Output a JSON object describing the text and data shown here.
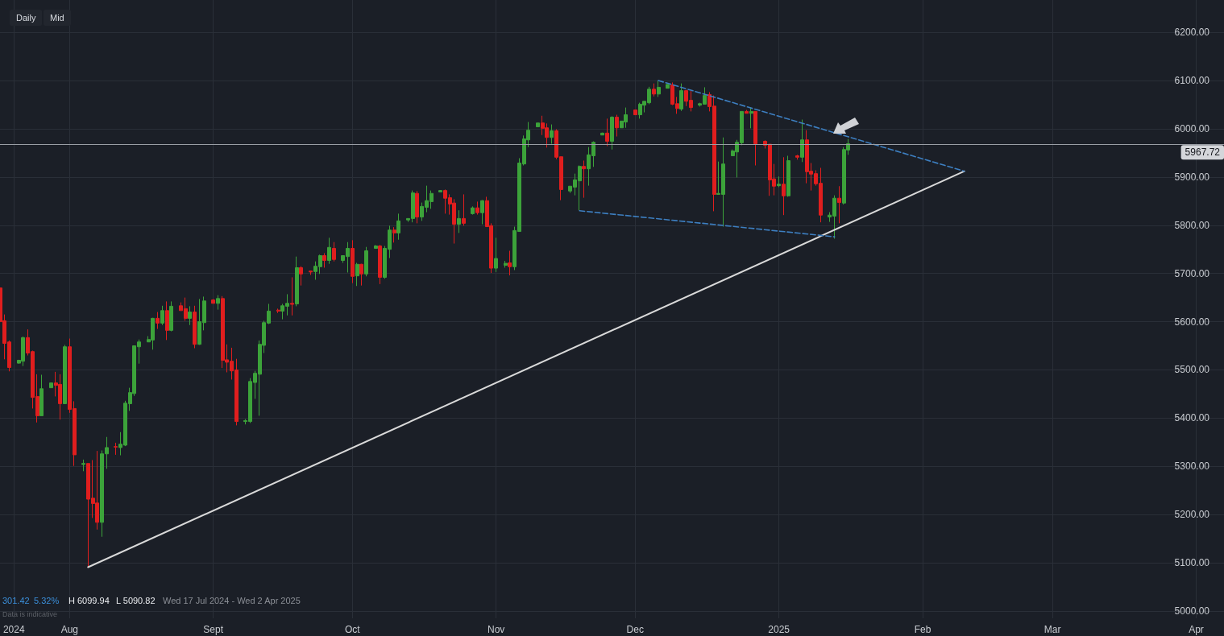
{
  "chart_data": {
    "type": "candlestick",
    "x": [
      "2024-07-17",
      "2024-07-18",
      "2024-07-19",
      "2024-07-21",
      "2024-07-22",
      "2024-07-23",
      "2024-07-24",
      "2024-07-25",
      "2024-07-26",
      "2024-07-28",
      "2024-07-29",
      "2024-07-30",
      "2024-07-31",
      "2024-08-01",
      "2024-08-02",
      "2024-08-04",
      "2024-08-05",
      "2024-08-06",
      "2024-08-07",
      "2024-08-08",
      "2024-08-09",
      "2024-08-11",
      "2024-08-12",
      "2024-08-13",
      "2024-08-14",
      "2024-08-15",
      "2024-08-16",
      "2024-08-18",
      "2024-08-19",
      "2024-08-20",
      "2024-08-21",
      "2024-08-22",
      "2024-08-23",
      "2024-08-25",
      "2024-08-26",
      "2024-08-27",
      "2024-08-28",
      "2024-08-29",
      "2024-08-30",
      "2024-09-01",
      "2024-09-02",
      "2024-09-03",
      "2024-09-04",
      "2024-09-05",
      "2024-09-06",
      "2024-09-08",
      "2024-09-09",
      "2024-09-10",
      "2024-09-11",
      "2024-09-12",
      "2024-09-13",
      "2024-09-15",
      "2024-09-16",
      "2024-09-17",
      "2024-09-18",
      "2024-09-19",
      "2024-09-20",
      "2024-09-22",
      "2024-09-23",
      "2024-09-24",
      "2024-09-25",
      "2024-09-26",
      "2024-09-27",
      "2024-09-29",
      "2024-09-30",
      "2024-10-01",
      "2024-10-02",
      "2024-10-03",
      "2024-10-04",
      "2024-10-06",
      "2024-10-07",
      "2024-10-08",
      "2024-10-09",
      "2024-10-10",
      "2024-10-11",
      "2024-10-13",
      "2024-10-14",
      "2024-10-15",
      "2024-10-16",
      "2024-10-17",
      "2024-10-18",
      "2024-10-20",
      "2024-10-21",
      "2024-10-22",
      "2024-10-23",
      "2024-10-24",
      "2024-10-25",
      "2024-10-27",
      "2024-10-28",
      "2024-10-29",
      "2024-10-30",
      "2024-10-31",
      "2024-11-01",
      "2024-11-03",
      "2024-11-04",
      "2024-11-05",
      "2024-11-06",
      "2024-11-07",
      "2024-11-08",
      "2024-11-10",
      "2024-11-11",
      "2024-11-12",
      "2024-11-13",
      "2024-11-14",
      "2024-11-15",
      "2024-11-17",
      "2024-11-18",
      "2024-11-19",
      "2024-11-20",
      "2024-11-21",
      "2024-11-22",
      "2024-11-24",
      "2024-11-25",
      "2024-11-26",
      "2024-11-27",
      "2024-11-28",
      "2024-11-29",
      "2024-12-01",
      "2024-12-02",
      "2024-12-03",
      "2024-12-04",
      "2024-12-05",
      "2024-12-06",
      "2024-12-08",
      "2024-12-09",
      "2024-12-10",
      "2024-12-11",
      "2024-12-12",
      "2024-12-13",
      "2024-12-15",
      "2024-12-16",
      "2024-12-17",
      "2024-12-18",
      "2024-12-19",
      "2024-12-20",
      "2024-12-22",
      "2024-12-23",
      "2024-12-24",
      "2024-12-25",
      "2024-12-26",
      "2024-12-27",
      "2024-12-29",
      "2024-12-30",
      "2024-12-31",
      "2025-01-01",
      "2025-01-02",
      "2025-01-03",
      "2025-01-05",
      "2025-01-06",
      "2025-01-07",
      "2025-01-08",
      "2025-01-09",
      "2025-01-10",
      "2025-01-12",
      "2025-01-13",
      "2025-01-14",
      "2025-01-15",
      "2025-01-16"
    ],
    "ohlc": [
      [
        5670,
        5675,
        5595,
        5600
      ],
      [
        5602,
        5615,
        5522,
        5555
      ],
      [
        5558,
        5561,
        5497,
        5505
      ],
      [
        5514,
        5521,
        5513,
        5520
      ],
      [
        5518,
        5569,
        5508,
        5567
      ],
      [
        5567,
        5584,
        5530,
        5535
      ],
      [
        5538,
        5540,
        5420,
        5443
      ],
      [
        5445,
        5491,
        5391,
        5405
      ],
      [
        5405,
        5490,
        5405,
        5461
      ],
      [
        5463,
        5473,
        5463,
        5473
      ],
      [
        5473,
        5496,
        5445,
        5468
      ],
      [
        5470,
        5491,
        5397,
        5430
      ],
      [
        5430,
        5552,
        5430,
        5548
      ],
      [
        5548,
        5565,
        5411,
        5418
      ],
      [
        5420,
        5435,
        5301,
        5324
      ],
      [
        5304,
        5314,
        5290,
        5306
      ],
      [
        5306,
        5306,
        5091,
        5232
      ],
      [
        5234,
        5313,
        5193,
        5223
      ],
      [
        5224,
        5332,
        5169,
        5184
      ],
      [
        5184,
        5333,
        5154,
        5326
      ],
      [
        5326,
        5361,
        5295,
        5339
      ],
      [
        5341,
        5349,
        5324,
        5340
      ],
      [
        5339,
        5371,
        5323,
        5346
      ],
      [
        5344,
        5436,
        5342,
        5431
      ],
      [
        5430,
        5463,
        5415,
        5453
      ],
      [
        5451,
        5550,
        5446,
        5550
      ],
      [
        5548,
        5563,
        5513,
        5558
      ],
      [
        5558,
        5570,
        5558,
        5563
      ],
      [
        5562,
        5608,
        5542,
        5607
      ],
      [
        5607,
        5620,
        5585,
        5597
      ],
      [
        5597,
        5633,
        5593,
        5623
      ],
      [
        5623,
        5642,
        5562,
        5582
      ],
      [
        5582,
        5642,
        5580,
        5632
      ],
      [
        5633,
        5640,
        5623,
        5623
      ],
      [
        5627,
        5650,
        5602,
        5607
      ],
      [
        5607,
        5632,
        5593,
        5620
      ],
      [
        5620,
        5633,
        5545,
        5553
      ],
      [
        5553,
        5647,
        5552,
        5600
      ],
      [
        5598,
        5652,
        5582,
        5643
      ],
      [
        5645,
        5647,
        5638,
        5638
      ],
      [
        5638,
        5655,
        5625,
        5648
      ],
      [
        5648,
        5653,
        5504,
        5520
      ],
      [
        5521,
        5553,
        5495,
        5516
      ],
      [
        5518,
        5546,
        5480,
        5498
      ],
      [
        5500,
        5523,
        5385,
        5393
      ],
      [
        5393,
        5398,
        5387,
        5395
      ],
      [
        5393,
        5483,
        5390,
        5476
      ],
      [
        5474,
        5498,
        5440,
        5493
      ],
      [
        5491,
        5561,
        5405,
        5553
      ],
      [
        5551,
        5602,
        5535,
        5598
      ],
      [
        5597,
        5637,
        5595,
        5622
      ],
      [
        5624,
        5627,
        5618,
        5622
      ],
      [
        5622,
        5637,
        5605,
        5633
      ],
      [
        5632,
        5657,
        5613,
        5638
      ],
      [
        5638,
        5692,
        5613,
        5636
      ],
      [
        5637,
        5735,
        5632,
        5712
      ],
      [
        5712,
        5715,
        5675,
        5699
      ],
      [
        5705,
        5706,
        5697,
        5703
      ],
      [
        5704,
        5725,
        5687,
        5715
      ],
      [
        5714,
        5739,
        5699,
        5737
      ],
      [
        5737,
        5742,
        5712,
        5727
      ],
      [
        5727,
        5774,
        5720,
        5754
      ],
      [
        5752,
        5765,
        5725,
        5729
      ],
      [
        5727,
        5737,
        5722,
        5737
      ],
      [
        5735,
        5765,
        5702,
        5752
      ],
      [
        5752,
        5769,
        5680,
        5694
      ],
      [
        5695,
        5722,
        5674,
        5719
      ],
      [
        5719,
        5720,
        5675,
        5699
      ],
      [
        5699,
        5755,
        5694,
        5747
      ],
      [
        5752,
        5759,
        5752,
        5757
      ],
      [
        5757,
        5759,
        5678,
        5692
      ],
      [
        5692,
        5757,
        5689,
        5752
      ],
      [
        5750,
        5799,
        5732,
        5790
      ],
      [
        5790,
        5796,
        5764,
        5784
      ],
      [
        5784,
        5824,
        5770,
        5809
      ],
      [
        5811,
        5814,
        5807,
        5814
      ],
      [
        5814,
        5872,
        5806,
        5867
      ],
      [
        5866,
        5871,
        5804,
        5817
      ],
      [
        5817,
        5847,
        5809,
        5839
      ],
      [
        5837,
        5882,
        5827,
        5851
      ],
      [
        5849,
        5872,
        5834,
        5866
      ],
      [
        5869,
        5873,
        5868,
        5872
      ],
      [
        5872,
        5874,
        5824,
        5856
      ],
      [
        5857,
        5864,
        5822,
        5844
      ],
      [
        5846,
        5854,
        5762,
        5802
      ],
      [
        5802,
        5831,
        5784,
        5814
      ],
      [
        5814,
        5864,
        5799,
        5804
      ],
      [
        5824,
        5839,
        5822,
        5836
      ],
      [
        5836,
        5849,
        5822,
        5826
      ],
      [
        5826,
        5852,
        5802,
        5851
      ],
      [
        5851,
        5859,
        5797,
        5797
      ],
      [
        5799,
        5804,
        5701,
        5711
      ],
      [
        5711,
        5774,
        5703,
        5731
      ],
      [
        5717,
        5726,
        5712,
        5721
      ],
      [
        5722,
        5747,
        5696,
        5714
      ],
      [
        5714,
        5797,
        5707,
        5789
      ],
      [
        5787,
        5939,
        5787,
        5929
      ],
      [
        5927,
        5986,
        5924,
        5979
      ],
      [
        5977,
        6014,
        5962,
        5997
      ],
      [
        6004,
        6012,
        6004,
        6012
      ],
      [
        6012,
        6027,
        5987,
        6001
      ],
      [
        6002,
        6011,
        5961,
        5982
      ],
      [
        5982,
        6009,
        5969,
        5996
      ],
      [
        5996,
        5999,
        5937,
        5941
      ],
      [
        5942,
        5942,
        5852,
        5874
      ],
      [
        5871,
        5881,
        5867,
        5881
      ],
      [
        5879,
        5907,
        5862,
        5894
      ],
      [
        5892,
        5924,
        5831,
        5922
      ],
      [
        5922,
        5934,
        5857,
        5917
      ],
      [
        5917,
        5962,
        5882,
        5946
      ],
      [
        5944,
        5974,
        5921,
        5972
      ],
      [
        5987,
        5992,
        5987,
        5991
      ],
      [
        5991,
        6021,
        5964,
        5974
      ],
      [
        5974,
        6026,
        5957,
        6024
      ],
      [
        6024,
        6029,
        5984,
        6002
      ],
      [
        6002,
        6016,
        6002,
        6016
      ],
      [
        6014,
        6044,
        6002,
        6029
      ],
      [
        6039,
        6039,
        6029,
        6029
      ],
      [
        6029,
        6054,
        6021,
        6051
      ],
      [
        6049,
        6057,
        6034,
        6057
      ],
      [
        6054,
        6087,
        6051,
        6082
      ],
      [
        6082,
        6094,
        6067,
        6072
      ],
      [
        6072,
        6100,
        6066,
        6086
      ],
      [
        6084,
        6092,
        6084,
        6092
      ],
      [
        6091,
        6096,
        6049,
        6051
      ],
      [
        6052,
        6066,
        6031,
        6042
      ],
      [
        6041,
        6094,
        6037,
        6079
      ],
      [
        6079,
        6081,
        6047,
        6057
      ],
      [
        6059,
        6079,
        6036,
        6044
      ],
      [
        6049,
        6054,
        6046,
        6052
      ],
      [
        6051,
        6086,
        6051,
        6069
      ],
      [
        6071,
        6076,
        6036,
        6046
      ],
      [
        6047,
        6069,
        5829,
        5864
      ],
      [
        5864,
        5932,
        5864,
        5866
      ],
      [
        5864,
        5982,
        5797,
        5927
      ],
      [
        5944,
        5957,
        5944,
        5954
      ],
      [
        5952,
        5977,
        5899,
        5972
      ],
      [
        5971,
        6036,
        5966,
        6036
      ],
      [
        6036,
        6039,
        6032,
        6032
      ],
      [
        6032,
        6044,
        6001,
        6036
      ],
      [
        6036,
        6036,
        5924,
        5969
      ],
      [
        5974,
        5976,
        5959,
        5966
      ],
      [
        5968,
        5968,
        5861,
        5894
      ],
      [
        5896,
        5927,
        5862,
        5881
      ],
      [
        5882,
        5901,
        5879,
        5885
      ],
      [
        5885,
        5941,
        5821,
        5861
      ],
      [
        5861,
        5944,
        5859,
        5934
      ],
      [
        5944,
        5946,
        5936,
        5941
      ],
      [
        5941,
        6019,
        5931,
        5977
      ],
      [
        5977,
        5997,
        5887,
        5911
      ],
      [
        5912,
        5929,
        5872,
        5906
      ],
      [
        5907,
        5914,
        5882,
        5886
      ],
      [
        5887,
        5919,
        5806,
        5821
      ],
      [
        5817,
        5827,
        5807,
        5821
      ],
      [
        5819,
        5862,
        5772,
        5856
      ],
      [
        5856,
        5881,
        5804,
        5847
      ],
      [
        5846,
        5962,
        5843,
        5957
      ],
      [
        5956,
        5979,
        5946,
        5969
      ]
    ],
    "colors": [
      "#e01e1e",
      "#e01e1e",
      "#e01e1e",
      "#3ca33a",
      "#3ca33a",
      "#e01e1e",
      "#e01e1e",
      "#e01e1e",
      "#3ca33a",
      "#3ca33a",
      "#e01e1e",
      "#e01e1e",
      "#3ca33a",
      "#e01e1e",
      "#e01e1e",
      "#3ca33a",
      "#e01e1e",
      "#e01e1e",
      "#e01e1e",
      "#3ca33a",
      "#3ca33a",
      "#e01e1e",
      "#3ca33a",
      "#3ca33a",
      "#3ca33a",
      "#3ca33a",
      "#3ca33a",
      "#3ca33a",
      "#3ca33a",
      "#e01e1e",
      "#3ca33a",
      "#e01e1e",
      "#3ca33a",
      "#e01e1e",
      "#e01e1e",
      "#3ca33a",
      "#e01e1e",
      "#3ca33a",
      "#3ca33a",
      "#e01e1e",
      "#3ca33a",
      "#e01e1e",
      "#e01e1e",
      "#e01e1e",
      "#e01e1e",
      "#3ca33a",
      "#3ca33a",
      "#3ca33a",
      "#3ca33a",
      "#3ca33a",
      "#3ca33a",
      "#e01e1e",
      "#3ca33a",
      "#3ca33a",
      "#e01e1e",
      "#3ca33a",
      "#e01e1e",
      "#e01e1e",
      "#3ca33a",
      "#3ca33a",
      "#e01e1e",
      "#3ca33a",
      "#e01e1e",
      "#3ca33a",
      "#3ca33a",
      "#e01e1e",
      "#3ca33a",
      "#e01e1e",
      "#3ca33a",
      "#3ca33a",
      "#e01e1e",
      "#3ca33a",
      "#3ca33a",
      "#e01e1e",
      "#3ca33a",
      "#3ca33a",
      "#3ca33a",
      "#e01e1e",
      "#3ca33a",
      "#3ca33a",
      "#3ca33a",
      "#3ca33a",
      "#e01e1e",
      "#e01e1e",
      "#e01e1e",
      "#3ca33a",
      "#e01e1e",
      "#3ca33a",
      "#e01e1e",
      "#3ca33a",
      "#e01e1e",
      "#e01e1e",
      "#3ca33a",
      "#3ca33a",
      "#e01e1e",
      "#3ca33a",
      "#3ca33a",
      "#3ca33a",
      "#3ca33a",
      "#3ca33a",
      "#e01e1e",
      "#e01e1e",
      "#3ca33a",
      "#e01e1e",
      "#e01e1e",
      "#3ca33a",
      "#3ca33a",
      "#3ca33a",
      "#e01e1e",
      "#3ca33a",
      "#3ca33a",
      "#3ca33a",
      "#e01e1e",
      "#3ca33a",
      "#e01e1e",
      "#3ca33a",
      "#3ca33a",
      "#e01e1e",
      "#3ca33a",
      "#3ca33a",
      "#3ca33a",
      "#e01e1e",
      "#3ca33a",
      "#3ca33a",
      "#e01e1e",
      "#e01e1e",
      "#3ca33a",
      "#e01e1e",
      "#e01e1e",
      "#3ca33a",
      "#3ca33a",
      "#e01e1e",
      "#e01e1e",
      "#3ca33a",
      "#3ca33a",
      "#3ca33a",
      "#3ca33a",
      "#3ca33a",
      "#e01e1e",
      "#3ca33a",
      "#e01e1e",
      "#e01e1e",
      "#e01e1e",
      "#e01e1e",
      "#3ca33a",
      "#e01e1e",
      "#3ca33a",
      "#e01e1e",
      "#3ca33a",
      "#e01e1e",
      "#e01e1e",
      "#e01e1e",
      "#e01e1e",
      "#3ca33a",
      "#3ca33a",
      "#e01e1e",
      "#3ca33a",
      "#3ca33a"
    ],
    "series": [
      {
        "type": "line",
        "x": [
          "2024-08-05",
          "2025-02-10"
        ],
        "values": [
          5091,
          5912
        ],
        "color": "#d9d9d9",
        "line_style": "solid"
      },
      {
        "type": "line",
        "x": [
          "2024-12-06",
          "2025-02-10"
        ],
        "values": [
          6100,
          5912
        ],
        "color": "#3d7fc1",
        "line_style": "dashed"
      },
      {
        "type": "line",
        "x": [
          "2024-11-19",
          "2025-01-13"
        ],
        "values": [
          5830,
          5776
        ],
        "color": "#3d7fc1",
        "line_style": "dashed"
      }
    ],
    "xlim": [
      "2024-07-17",
      "2025-04-07"
    ],
    "xticks": [
      {
        "value": "2024-07-20",
        "label": "2024"
      },
      {
        "value": "2024-08-01",
        "label": "Aug"
      },
      {
        "value": "2024-09-01",
        "label": "Sept"
      },
      {
        "value": "2024-10-01",
        "label": "Oct"
      },
      {
        "value": "2024-11-01",
        "label": "Nov"
      },
      {
        "value": "2024-12-01",
        "label": "Dec"
      },
      {
        "value": "2025-01-01",
        "label": "2025"
      },
      {
        "value": "2025-02-01",
        "label": "Feb"
      },
      {
        "value": "2025-03-01",
        "label": "Mar"
      },
      {
        "value": "2025-04-01",
        "label": "Apr"
      }
    ],
    "ylim": [
      4985,
      6267
    ],
    "yticks": [
      {
        "value": 5000,
        "label": "5000.00"
      },
      {
        "value": 5100,
        "label": "5100.00"
      },
      {
        "value": 5200,
        "label": "5200.00"
      },
      {
        "value": 5300,
        "label": "5300.00"
      },
      {
        "value": 5400,
        "label": "5400.00"
      },
      {
        "value": 5500,
        "label": "5500.00"
      },
      {
        "value": 5600,
        "label": "5600.00"
      },
      {
        "value": 5700,
        "label": "5700.00"
      },
      {
        "value": 5800,
        "label": "5800.00"
      },
      {
        "value": 5900,
        "label": "5900.00"
      },
      {
        "value": 6000,
        "label": "6000.00"
      },
      {
        "value": 6100,
        "label": "6100.00"
      },
      {
        "value": 6200,
        "label": "6200.00"
      }
    ],
    "ref_lines": [
      {
        "axis": "y",
        "value": 5967.72,
        "label": "5967.72",
        "color": "#9a9ea5"
      }
    ],
    "grid": true,
    "marker": "none",
    "annotations": [
      "Daily",
      "Mid",
      "301.42",
      "5.32%",
      "H 6099.94",
      "L 5090.82",
      "Wed 17 Jul 2024 - Wed 2 Apr 2025",
      "Data is indicative"
    ]
  }
}
